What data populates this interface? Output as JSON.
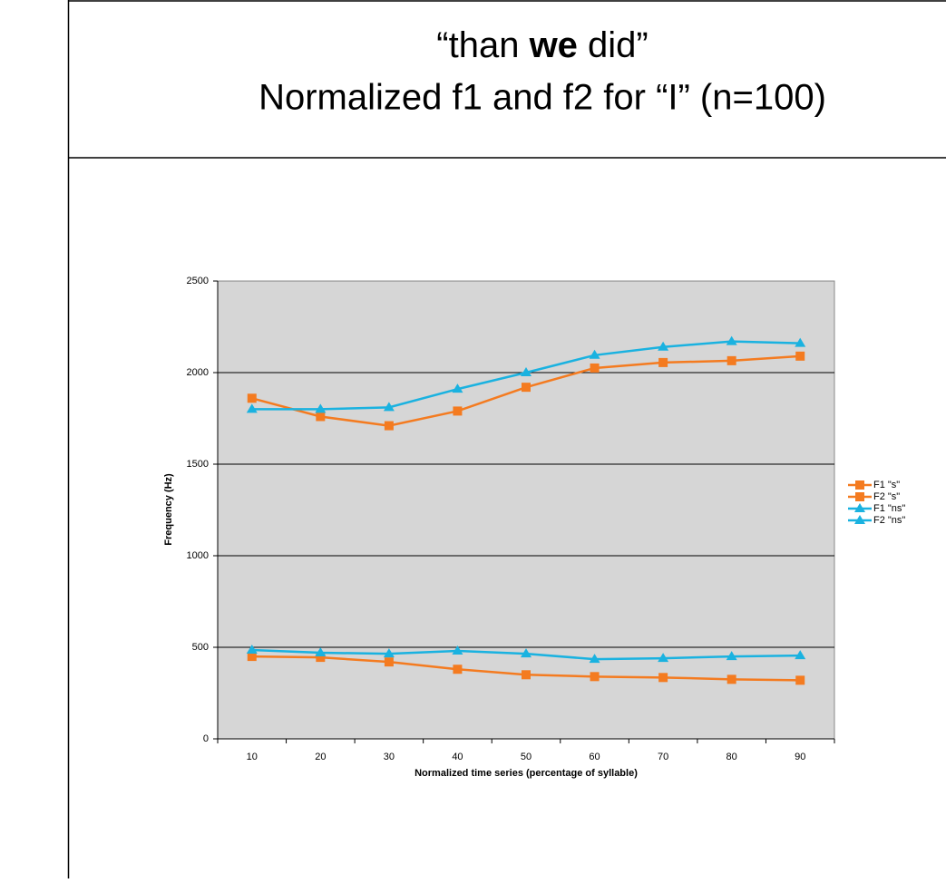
{
  "slide": {
    "title_line1": [
      "“than ",
      "we",
      " did”"
    ],
    "title_line2": "Normalized f1 and f2 for “I” (n=100)"
  },
  "chart_data": {
    "type": "line",
    "xlabel": "Normalized time series (percentage of syllable)",
    "ylabel": "Frequency (Hz)",
    "categories": [
      "10",
      "20",
      "30",
      "40",
      "50",
      "60",
      "70",
      "80",
      "90"
    ],
    "ylim": [
      0,
      2500
    ],
    "yticks": [
      0,
      500,
      1000,
      1500,
      2000,
      2500
    ],
    "grid": true,
    "legend": "right",
    "series": [
      {
        "name": "F1 \"s\"",
        "color": "#f47b20",
        "marker": "square",
        "values": [
          450,
          445,
          420,
          380,
          350,
          340,
          335,
          325,
          320
        ]
      },
      {
        "name": "F2 \"s\"",
        "color": "#f47b20",
        "marker": "square",
        "values": [
          1860,
          1760,
          1710,
          1790,
          1920,
          2025,
          2055,
          2065,
          2090
        ]
      },
      {
        "name": "F1 \"ns\"",
        "color": "#1ab2e0",
        "marker": "triangle",
        "values": [
          485,
          470,
          465,
          480,
          465,
          435,
          440,
          450,
          455
        ]
      },
      {
        "name": "F2 \"ns\"",
        "color": "#1ab2e0",
        "marker": "triangle",
        "values": [
          1800,
          1800,
          1810,
          1910,
          2000,
          2095,
          2140,
          2170,
          2160
        ]
      }
    ]
  }
}
